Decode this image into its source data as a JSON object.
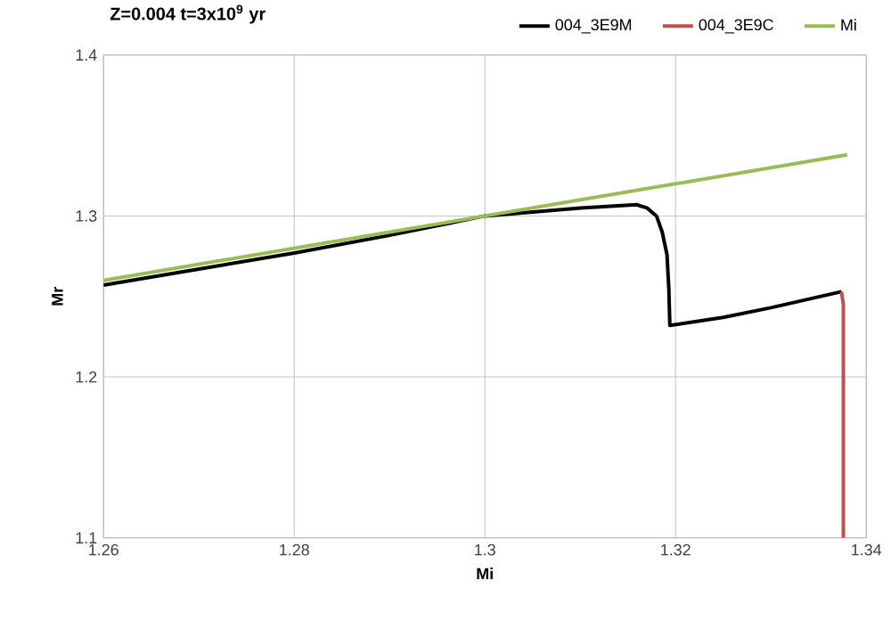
{
  "chart_data": {
    "type": "line",
    "title": "Z=0.004 t=3x10$^{9}$ yr",
    "xlabel": "Mi",
    "ylabel": "Mr",
    "xlim": [
      1.26,
      1.34
    ],
    "xticks": [
      1.26,
      1.28,
      1.3,
      1.32,
      1.34
    ],
    "ylim": [
      1.1,
      1.4
    ],
    "yticks": [
      1.1,
      1.2,
      1.3,
      1.4
    ],
    "grid": true,
    "legend": "top right",
    "marker": "none",
    "series": [
      {
        "name": "004_3E9M",
        "color": "#000000",
        "x": [
          1.26,
          1.27,
          1.28,
          1.29,
          1.3,
          1.31,
          1.3159,
          1.317,
          1.318,
          1.3186,
          1.3191,
          1.3193,
          1.3194,
          1.325,
          1.33,
          1.3374
        ],
        "values": [
          1.257,
          1.267,
          1.277,
          1.288,
          1.3,
          1.305,
          1.307,
          1.305,
          1.3,
          1.29,
          1.276,
          1.254,
          1.232,
          1.237,
          1.243,
          1.253
        ]
      },
      {
        "name": "004_3E9C",
        "color": "#c0504d",
        "x": [
          1.3374,
          1.3376,
          1.3376
        ],
        "values": [
          1.253,
          1.245,
          1.1
        ]
      },
      {
        "name": "Mi",
        "color": "#9bbb59",
        "x": [
          1.26,
          1.338
        ],
        "values": [
          1.26,
          1.338
        ]
      }
    ]
  }
}
